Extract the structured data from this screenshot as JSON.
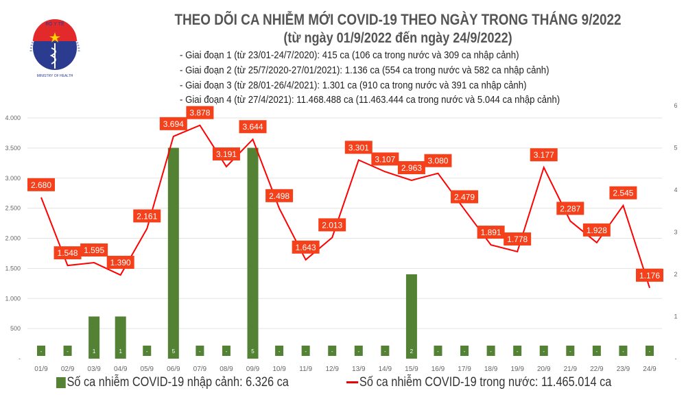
{
  "logo": {
    "text_top": "BỘ Y TẾ",
    "text_bottom": "MINISTRY OF HEALTH"
  },
  "title": "THEO DÕI CA NHIỄM MỚI COVID-19 THEO NGÀY TRONG THÁNG 9/2022",
  "subtitle": "(từ ngày 01/9/2022 đến ngày 24/9/2022)",
  "info_lines": [
    "- Giai đoạn 1 (từ 23/01-24/7/2020): 415 ca (106 ca trong nước và 309 ca nhập cảnh)",
    "- Giai đoạn 2 (từ 25/7/2020-27/01/2021): 1.136 ca (554 ca trong nước và 582 ca nhập cảnh)",
    "- Giai đoạn 3 (từ 28/01-26/4/2021): 1.301 ca (910 ca trong nước và 391 ca nhập cảnh)",
    "- Giai đoạn 4 (từ 27/4/2021): 11.468.488 ca (11.463.444 ca trong nước và 5.044 ca nhập cảnh)"
  ],
  "chart_data": {
    "type": "bar+line",
    "categories": [
      "01/9",
      "02/9",
      "03/9",
      "04/9",
      "05/9",
      "06/9",
      "07/9",
      "08/9",
      "09/9",
      "10/9",
      "11/9",
      "12/9",
      "13/9",
      "14/9",
      "15/9",
      "16/9",
      "17/9",
      "18/9",
      "19/9",
      "20/9",
      "21/9",
      "22/9",
      "23/9",
      "24/9"
    ],
    "series": [
      {
        "name": "Số ca nhiễm COVID-19 nhập cảnh: 6.326 ca",
        "type": "bar",
        "axis": "right",
        "color": "#548235",
        "values": [
          0,
          0,
          1,
          1,
          0,
          5,
          0,
          0,
          5,
          0,
          0,
          0,
          0,
          0,
          2,
          0,
          0,
          0,
          0,
          0,
          0,
          0,
          0,
          0
        ],
        "labels": [
          "-",
          "-",
          "1",
          "1",
          "-",
          "5",
          "-",
          "-",
          "5",
          "-",
          "-",
          "-",
          "-",
          "-",
          "2",
          "-",
          "-",
          "-",
          "-",
          "-",
          "-",
          "-",
          "-",
          "-"
        ]
      },
      {
        "name": "Số ca nhiễm COVID-19 trong nước: 11.465.014 ca",
        "type": "line",
        "axis": "left",
        "color": "#ff0000",
        "label_bg": "#f4411b",
        "values": [
          2680,
          1548,
          1595,
          1390,
          2161,
          3694,
          3878,
          3191,
          3644,
          2498,
          1643,
          2013,
          3301,
          3107,
          2963,
          3080,
          2479,
          1891,
          1778,
          3177,
          2287,
          1928,
          2545,
          1176
        ],
        "labels": [
          "2.680",
          "1.548",
          "1.595",
          "1.390",
          "2.161",
          "3.694",
          "3.878",
          "3.191",
          "3.644",
          "2.498",
          "1.643",
          "2.013",
          "3.301",
          "3.107",
          "2.963",
          "3.080",
          "2.479",
          "1.891",
          "1.778",
          "3.177",
          "2.287",
          "1.928",
          "2.545",
          "1.176"
        ]
      }
    ],
    "left_axis": {
      "ylim": [
        0,
        4000
      ],
      "ticks": [
        "-",
        "500",
        "1.000",
        "1.500",
        "2.000",
        "2.500",
        "3.000",
        "3.500",
        "4.000"
      ]
    },
    "right_axis": {
      "ylim": [
        0,
        6
      ],
      "ticks": [
        "-",
        "1",
        "2",
        "3",
        "4",
        "5",
        "6"
      ]
    },
    "grid": true,
    "legend": "bottom"
  }
}
